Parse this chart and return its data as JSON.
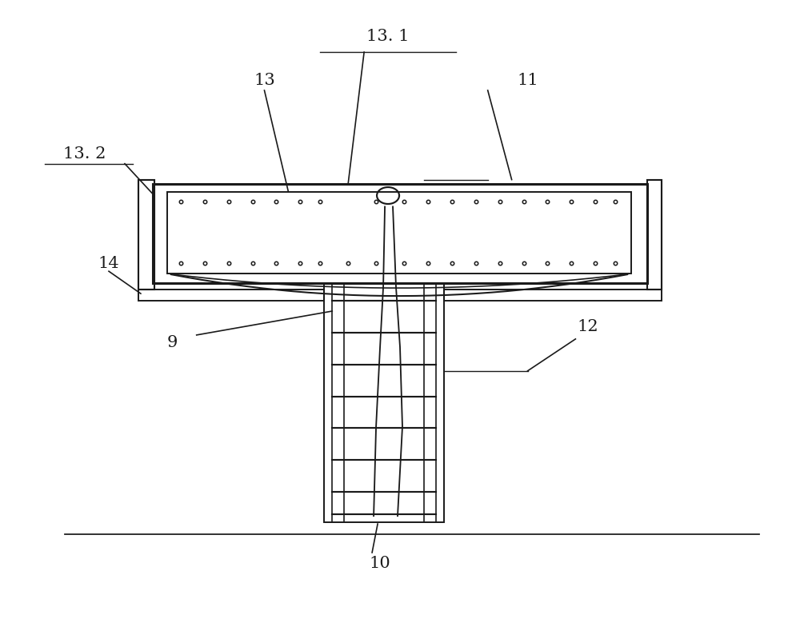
{
  "bg_color": "#ffffff",
  "lc": "#1a1a1a",
  "lw": 1.4,
  "tlw": 2.2,
  "fig_width": 10.0,
  "fig_height": 7.84,
  "labels": {
    "13_1": "13. 1",
    "13": "13",
    "13_2": "13. 2",
    "11": "11",
    "14": "14",
    "12": "12",
    "9": "9",
    "10": "10"
  }
}
